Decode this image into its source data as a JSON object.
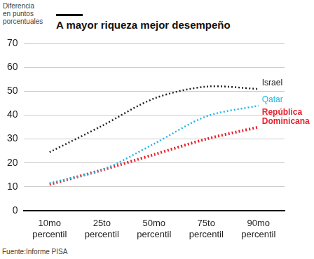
{
  "chart_data": {
    "type": "line",
    "title": "A mayor riqueza mejor desempeño",
    "ylabel": "Diferencia en puntos porcentuales",
    "source": "Fuente:Informe PISA",
    "categories": [
      "10mo percentil",
      "25to percentil",
      "50mo percentil",
      "75to percentil",
      "90mo percentil"
    ],
    "series": [
      {
        "name": "Israel",
        "color": "#222222",
        "line_style": "dotted",
        "values": [
          24.5,
          35.5,
          47,
          52,
          51
        ]
      },
      {
        "name": "Qatar",
        "color": "#1fb6e6",
        "line_style": "dotted",
        "values": [
          11.5,
          17,
          28,
          39.5,
          44
        ]
      },
      {
        "name": "República Dominicana",
        "color": "#e8202a",
        "line_style": "dotted",
        "values": [
          11,
          17,
          23.5,
          30,
          35
        ]
      }
    ],
    "ylim": [
      0,
      70
    ],
    "yticks": [
      0,
      10,
      20,
      30,
      40,
      50,
      60,
      70
    ],
    "grid": true
  }
}
